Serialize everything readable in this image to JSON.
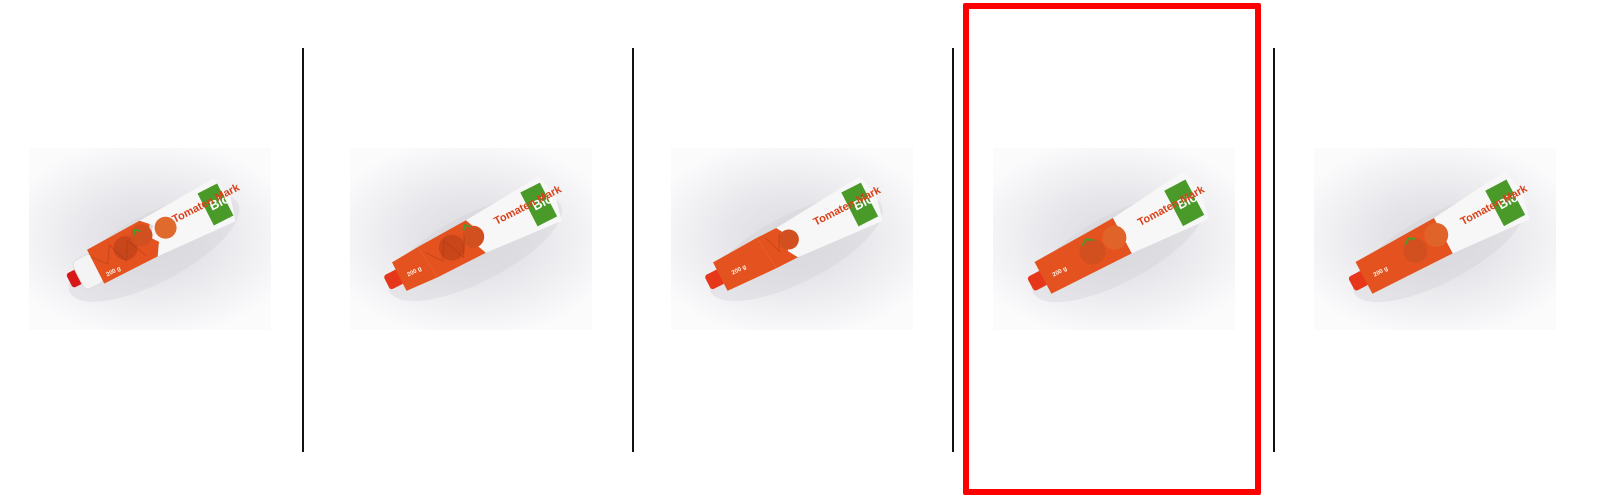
{
  "panels": [
    {
      "id": 1,
      "label_name": "Tomaten Mark",
      "label_brand": "Bio",
      "cap_text": "200 g",
      "state": "fully squeezed"
    },
    {
      "id": 2,
      "label_name": "Tomaten Mark",
      "label_brand": "Bio",
      "cap_text": "200 g",
      "state": "mostly squeezed"
    },
    {
      "id": 3,
      "label_name": "Tomaten Mark",
      "label_brand": "Bio",
      "cap_text": "200 g",
      "state": "partly squeezed"
    },
    {
      "id": 4,
      "label_name": "Tomaten Mark",
      "label_brand": "Bio",
      "cap_text": "200 g",
      "state": "full",
      "selected": true
    },
    {
      "id": 5,
      "label_name": "Tomaten Mark",
      "label_brand": "Bio",
      "cap_text": "200 g",
      "state": "full"
    }
  ],
  "colors": {
    "highlight": "#ff0000",
    "tube_orange": "#e4531f",
    "tube_white": "#f7f7f7",
    "label_green": "#4a9a2a",
    "divider": "#111111"
  },
  "icons": [
    "tomato-paste-tube-image"
  ]
}
